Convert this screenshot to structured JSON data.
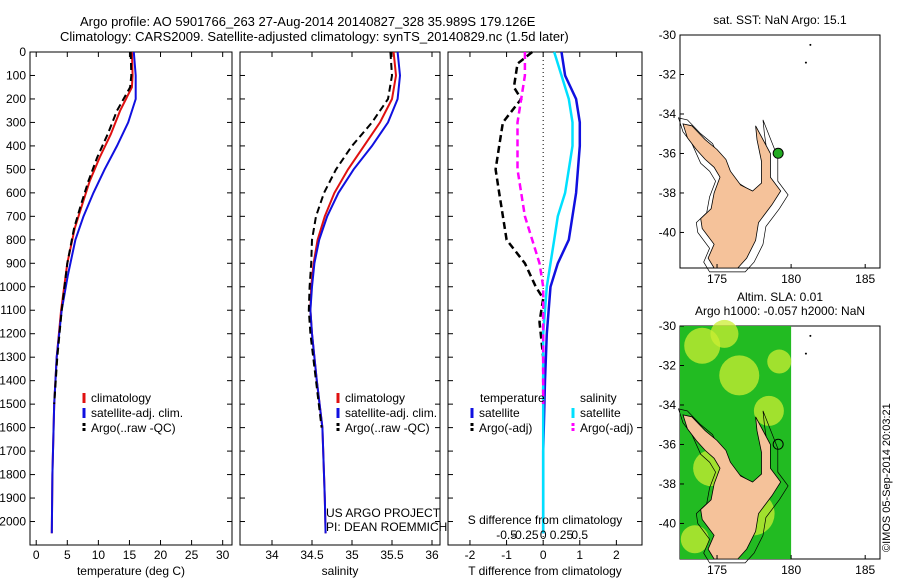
{
  "header": {
    "title_line1": "Argo profile: AO 5901766_263 27-Aug-2014 20140827_328 35.989S 179.126E",
    "title_line2": "Climatology: CARS2009. Satellite-adjusted climatology: synTS_20140829.nc (1.5d later)"
  },
  "colors": {
    "climatology": "#e01010",
    "satellite": "#1010e0",
    "argo": "#000000",
    "sat_salinity": "#00e0ff",
    "argo_salinity": "#ff00ff",
    "land": "#f5c29a",
    "ocean_map": "#ffffff",
    "sla_green": "#22bb22",
    "sla_yellow": "#ccee33",
    "argo_marker": "#22aa22"
  },
  "chart_data": [
    {
      "type": "line",
      "name": "temperature",
      "xlabel": "temperature (deg C)",
      "ylabel": "",
      "xlim": [
        -1,
        31.5
      ],
      "ylim": [
        2100,
        0
      ],
      "xticks": [
        0,
        5,
        10,
        15,
        20,
        25,
        30
      ],
      "yticks": [
        0,
        100,
        200,
        300,
        400,
        500,
        600,
        700,
        800,
        900,
        1000,
        1100,
        1200,
        1300,
        1400,
        1500,
        1600,
        1700,
        1800,
        1900,
        2000
      ],
      "legend": [
        "climatology",
        "satellite-adj. clim.",
        "Argo(..raw -QC)"
      ],
      "series": [
        {
          "name": "climatology",
          "style": "solid",
          "color_key": "climatology",
          "x": [
            15.4,
            15.5,
            15.4,
            13.5,
            12.0,
            10.2,
            8.6,
            7.4,
            6.2,
            5.0,
            4.0,
            3.3,
            2.9,
            2.6,
            2.5
          ],
          "y": [
            0,
            100,
            150,
            250,
            350,
            450,
            550,
            650,
            750,
            900,
            1100,
            1300,
            1500,
            1800,
            2050
          ]
        },
        {
          "name": "satellite-adj. clim.",
          "style": "solid",
          "color_key": "satellite",
          "x": [
            15.7,
            16.0,
            16.0,
            14.8,
            13.0,
            11.0,
            9.2,
            7.6,
            6.3,
            5.1,
            4.1,
            3.3,
            2.9,
            2.6,
            2.5
          ],
          "y": [
            0,
            100,
            200,
            300,
            400,
            500,
            600,
            700,
            800,
            950,
            1100,
            1300,
            1500,
            1800,
            2050
          ]
        },
        {
          "name": "Argo(..raw -QC)",
          "style": "dashed",
          "color_key": "argo",
          "x": [
            15.2,
            15.3,
            15.1,
            13.0,
            11.5,
            9.8,
            8.4,
            7.2,
            6.1,
            5.0,
            4.1,
            3.4,
            2.9
          ],
          "y": [
            0,
            100,
            150,
            250,
            350,
            450,
            550,
            650,
            750,
            900,
            1100,
            1300,
            1500
          ]
        }
      ],
      "annotations": []
    },
    {
      "type": "line",
      "name": "salinity",
      "xlabel": "salinity",
      "xlim": [
        33.6,
        36.1
      ],
      "ylim": [
        2100,
        0
      ],
      "xticks": [
        34,
        34.5,
        35,
        35.5,
        36
      ],
      "xticklabels": [
        "34",
        "34.5",
        "35",
        "35.5",
        "36"
      ],
      "legend": [
        "climatology",
        "satellite-adj. clim.",
        "Argo(..raw -QC)"
      ],
      "series": [
        {
          "name": "climatology",
          "style": "solid",
          "color_key": "climatology",
          "x": [
            35.52,
            35.55,
            35.5,
            35.35,
            35.15,
            34.95,
            34.78,
            34.66,
            34.57,
            34.52,
            34.49,
            34.48,
            34.5,
            34.56,
            34.63,
            34.66,
            34.67
          ],
          "y": [
            0,
            100,
            200,
            300,
            400,
            500,
            600,
            700,
            800,
            900,
            1000,
            1100,
            1200,
            1400,
            1600,
            1900,
            2050
          ]
        },
        {
          "name": "satellite-adj. clim.",
          "style": "solid",
          "color_key": "satellite",
          "x": [
            35.57,
            35.6,
            35.57,
            35.45,
            35.25,
            35.02,
            34.83,
            34.69,
            34.59,
            34.53,
            34.5,
            34.48,
            34.5,
            34.56,
            34.63,
            34.66,
            34.67
          ],
          "y": [
            0,
            100,
            200,
            300,
            400,
            500,
            600,
            700,
            800,
            900,
            1000,
            1100,
            1200,
            1400,
            1600,
            1900,
            2050
          ]
        },
        {
          "name": "Argo(..raw -QC)",
          "style": "dashed",
          "color_key": "argo",
          "x": [
            35.48,
            35.5,
            35.45,
            35.25,
            35.0,
            34.8,
            34.65,
            34.55,
            34.5,
            34.49,
            34.47,
            34.46,
            34.48,
            34.55,
            34.62
          ],
          "y": [
            0,
            100,
            200,
            300,
            400,
            500,
            600,
            700,
            800,
            900,
            1000,
            1100,
            1200,
            1400,
            1600
          ]
        }
      ],
      "annotations": [
        "US ARGO PROJECT",
        "PI: DEAN ROEMMICH"
      ]
    },
    {
      "type": "line",
      "name": "difference",
      "xlabel": "T difference from climatology",
      "xlabel_top": "S difference from climatology",
      "xlim": [
        -2.6,
        2.7
      ],
      "ylim": [
        2100,
        0
      ],
      "xticks": [
        -2,
        -1,
        0,
        1,
        2
      ],
      "xticks_s": [
        -0.5,
        -0.25,
        0,
        0.25,
        0.5
      ],
      "xticklabels_s": [
        "-0.5",
        "-0.25",
        "0",
        "0.25",
        "0.5"
      ],
      "legend_groups": [
        "temperature",
        "salinity"
      ],
      "legend": [
        "satellite",
        "Argo(-adj)",
        "satellite",
        "Argo(-adj)"
      ],
      "series": [
        {
          "name": "temperature satellite",
          "style": "solid",
          "color_key": "satellite",
          "x": [
            0.5,
            0.6,
            0.9,
            1.0,
            1.0,
            0.9,
            0.7,
            0.4,
            0.2,
            0.1,
            0.05,
            0,
            0
          ],
          "y": [
            0,
            100,
            200,
            300,
            400,
            600,
            800,
            900,
            1000,
            1200,
            1400,
            1700,
            2050
          ]
        },
        {
          "name": "temperature Argo(-adj)",
          "style": "dashed",
          "color_key": "argo",
          "x": [
            -0.3,
            -0.7,
            -0.8,
            -0.6,
            -1.1,
            -1.2,
            -1.3,
            -1.2,
            -1.1,
            -1.0,
            -0.5,
            -0.2,
            0,
            -0.1,
            0,
            0
          ],
          "y": [
            0,
            50,
            150,
            200,
            300,
            400,
            500,
            600,
            700,
            800,
            900,
            1000,
            1050,
            1150,
            1300,
            1500
          ]
        },
        {
          "name": "salinity satellite",
          "style": "solid",
          "color_key": "sat_salinity",
          "x": [
            0.3,
            0.5,
            0.7,
            0.8,
            0.8,
            0.7,
            0.6,
            0.4,
            0.3,
            0.2,
            0.1,
            0,
            0,
            0
          ],
          "y": [
            0,
            100,
            200,
            300,
            400,
            500,
            600,
            700,
            800,
            900,
            1000,
            1200,
            1500,
            2050
          ]
        },
        {
          "name": "salinity Argo(-adj)",
          "style": "dashed",
          "color_key": "argo_salinity",
          "x": [
            -0.5,
            -0.5,
            -0.6,
            -0.7,
            -0.7,
            -0.6,
            -0.5,
            -0.3,
            -0.1,
            0,
            0
          ],
          "y": [
            0,
            100,
            200,
            300,
            500,
            600,
            700,
            800,
            900,
            1000,
            1500
          ]
        }
      ],
      "annotations": []
    },
    {
      "type": "scatter",
      "name": "sst_map",
      "title": "sat. SST: NaN Argo: 15.1",
      "xlim": [
        172.5,
        186
      ],
      "ylim": [
        -41.8,
        -30
      ],
      "xticks": [
        175,
        180,
        185
      ],
      "yticks": [
        -30,
        -32,
        -34,
        -36,
        -38,
        -40
      ],
      "points": [
        {
          "x": 179.126,
          "y": -35.989
        }
      ]
    },
    {
      "type": "heatmap",
      "name": "sla_map",
      "title_line1": "Altim. SLA: 0.01",
      "title_line2": "Argo h1000: -0.057 h2000: NaN",
      "xlim": [
        172.5,
        186
      ],
      "ylim": [
        -41.8,
        -30
      ],
      "xticks": [
        175,
        180,
        185
      ],
      "yticks": [
        -30,
        -32,
        -34,
        -36,
        -38,
        -40
      ],
      "points": [
        {
          "x": 179.126,
          "y": -35.989
        }
      ]
    }
  ],
  "side_label": "©IMOS 05-Sep-2014 20:03:21"
}
